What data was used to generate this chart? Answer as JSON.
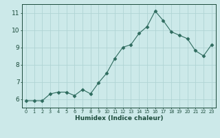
{
  "x": [
    0,
    1,
    2,
    3,
    4,
    5,
    6,
    7,
    8,
    9,
    10,
    11,
    12,
    13,
    14,
    15,
    16,
    17,
    18,
    19,
    20,
    21,
    22,
    23
  ],
  "y": [
    5.9,
    5.9,
    5.9,
    6.3,
    6.4,
    6.4,
    6.2,
    6.55,
    6.3,
    6.95,
    7.5,
    8.35,
    9.0,
    9.15,
    9.8,
    10.2,
    11.1,
    10.55,
    9.9,
    9.7,
    9.5,
    8.8,
    8.5,
    9.15
  ],
  "line_color": "#2e6b5e",
  "marker": "D",
  "marker_size": 2.5,
  "bg_color": "#cce9e9",
  "grid_color": "#b0d4d4",
  "xlabel": "Humidex (Indice chaleur)",
  "xlabel_color": "#1a4a3a",
  "tick_color": "#1a4a3a",
  "axis_color": "#1a4a3a",
  "ylim": [
    5.5,
    11.5
  ],
  "yticks": [
    6,
    7,
    8,
    9,
    10,
    11
  ],
  "xlim": [
    -0.5,
    23.5
  ],
  "xticks": [
    0,
    1,
    2,
    3,
    4,
    5,
    6,
    7,
    8,
    9,
    10,
    11,
    12,
    13,
    14,
    15,
    16,
    17,
    18,
    19,
    20,
    21,
    22,
    23
  ]
}
